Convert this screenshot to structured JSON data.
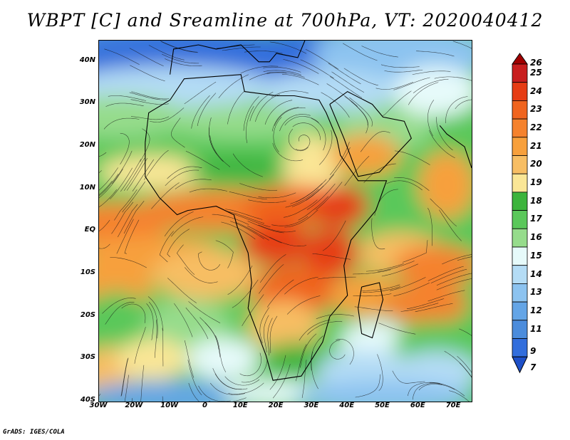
{
  "title": "WBPT [C] and Sreamline at 700hPa, VT: 2020040412",
  "credit": "GrADS: IGES/COLA",
  "map": {
    "lat_ticks": [
      "40N",
      "30N",
      "20N",
      "10N",
      "EQ",
      "10S",
      "20S",
      "30S",
      "40S"
    ],
    "lon_ticks": [
      "30W",
      "20W",
      "10W",
      "0",
      "10E",
      "20E",
      "30E",
      "40E",
      "50E",
      "60E",
      "70E"
    ],
    "lon_range": [
      -30,
      75
    ],
    "lat_range": [
      -40,
      45
    ]
  },
  "colorbar": {
    "levels": [
      "26",
      "25",
      "24",
      "23",
      "22",
      "21",
      "20",
      "19",
      "18",
      "17",
      "16",
      "15",
      "14",
      "13",
      "12",
      "11",
      "9",
      "7"
    ],
    "colors": {
      "c26": "#a00000",
      "c25": "#c81e1e",
      "c24": "#e63c14",
      "c23": "#f0641e",
      "c22": "#f5822d",
      "c21": "#f7a03c",
      "c20": "#f7be64",
      "c19": "#fae696",
      "c18": "#3cb43c",
      "c17": "#5ac85a",
      "c16": "#96dc8c",
      "c15": "#e6fafa",
      "c14": "#b4dcf5",
      "c13": "#8cc3f0",
      "c12": "#64a5e6",
      "c11": "#4b8cdc",
      "c9": "#326edc",
      "c7": "#1e50c8"
    }
  }
}
